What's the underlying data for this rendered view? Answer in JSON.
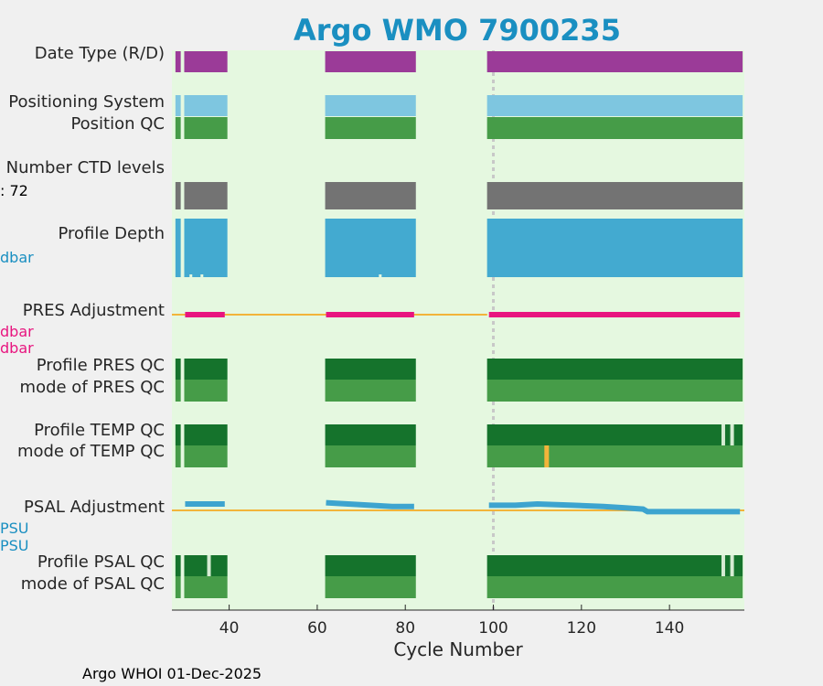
{
  "chart_data": {
    "type": "timeline",
    "title": "Argo WMO 7900235",
    "xlabel": "Cycle Number",
    "xlim": [
      27,
      157
    ],
    "xticks": [
      40,
      60,
      80,
      100,
      120,
      140
    ],
    "footer": "Argo WHOI 01-Dec-2025",
    "reference_cycle": 100,
    "colors": {
      "background": "#e5f8e0",
      "figure": "#f0f0f0",
      "title": "#1a8fc1",
      "date_type": "#9b3b98",
      "positioning": "#7ec6e0",
      "qc_good_dark": "#15732c",
      "qc_good_light": "#469c48",
      "ctd_levels": "#737373",
      "profile_depth": "#43aad0",
      "pres_adj": "#e8157f",
      "adj_zero": "#f2b43a",
      "psal_adj": "#3da4cf",
      "qc_flag": "#f2b43a",
      "gap": "#d6ecd3",
      "ref_line": "#c8c8c8"
    },
    "segments": [
      [
        27.8,
        29.0
      ],
      [
        29.8,
        39.6
      ],
      [
        61.8,
        82.4
      ],
      [
        98.6,
        156.6
      ]
    ],
    "rows": [
      {
        "label": "Date Type (R/D)",
        "sub": "",
        "subcolor": ""
      },
      {
        "label": "Positioning System",
        "sub": "",
        "subcolor": ""
      },
      {
        "label": "Position QC",
        "sub": "",
        "subcolor": ""
      },
      {
        "label": "Number CTD levels",
        "sub": ": 72",
        "subcolor": "#000000"
      },
      {
        "label": "Profile Depth",
        "sub": "dbar",
        "subcolor": "#1a8fc1"
      },
      {
        "label": "PRES Adjustment",
        "sub": "dbar",
        "subcolor": "#e8157f",
        "sub2": "dbar"
      },
      {
        "label": "Profile PRES QC",
        "sub": "",
        "subcolor": ""
      },
      {
        "label": "mode of PRES QC",
        "sub": "",
        "subcolor": ""
      },
      {
        "label": "Profile TEMP QC",
        "sub": "",
        "subcolor": ""
      },
      {
        "label": "mode of TEMP QC",
        "sub": "",
        "subcolor": ""
      },
      {
        "label": "PSAL Adjustment",
        "sub": "PSU",
        "subcolor": "#1a8fc1",
        "sub2": "PSU"
      },
      {
        "label": "Profile PSAL QC",
        "sub": "",
        "subcolor": ""
      },
      {
        "label": "mode of PSAL QC",
        "sub": "",
        "subcolor": ""
      }
    ],
    "temp_qc_gaps": [
      151.8,
      153.8
    ],
    "temp_mode_flag": 112,
    "psal_qc_gaps": [
      35.0,
      151.8,
      153.8
    ],
    "pres_adj_segments": [
      [
        30.0,
        39.0
      ],
      [
        62.0,
        82.0
      ],
      [
        99.0,
        156.0
      ]
    ],
    "psal_adj_points": [
      [
        30,
        0.05
      ],
      [
        39,
        0.05
      ],
      [
        62,
        0.06
      ],
      [
        67,
        0.05
      ],
      [
        72,
        0.04
      ],
      [
        77,
        0.03
      ],
      [
        82,
        0.03
      ],
      [
        99,
        0.04
      ],
      [
        105,
        0.04
      ],
      [
        110,
        0.05
      ],
      [
        118,
        0.04
      ],
      [
        125,
        0.03
      ],
      [
        130,
        0.02
      ],
      [
        134,
        0.01
      ],
      [
        135,
        -0.01
      ],
      [
        145,
        -0.01
      ],
      [
        156,
        -0.01
      ]
    ]
  }
}
